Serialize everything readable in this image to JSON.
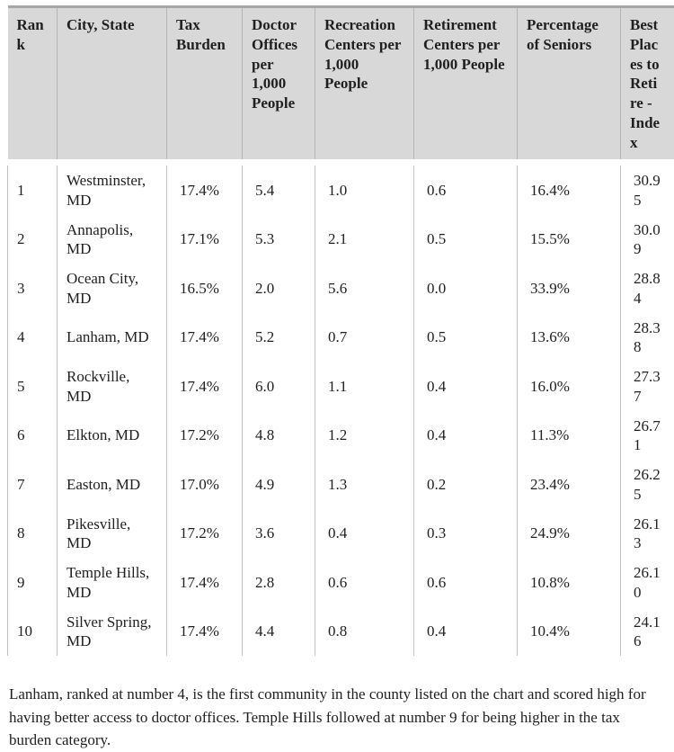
{
  "chart_data": {
    "type": "table",
    "columns": [
      "Rank",
      "City, State",
      "Tax Burden",
      "Doctor Offices per 1,000 People",
      "Recreation Centers per 1,000 People",
      "Retirement Centers per 1,000 People",
      "Percentage of Seniors",
      "Best Places to Retire - Index"
    ],
    "rows": [
      [
        "1",
        "Westminster, MD",
        "17.4%",
        "5.4",
        "1.0",
        "0.6",
        "16.4%",
        "30.95"
      ],
      [
        "2",
        "Annapolis, MD",
        "17.1%",
        "5.3",
        "2.1",
        "0.5",
        "15.5%",
        "30.09"
      ],
      [
        "3",
        "Ocean City, MD",
        "16.5%",
        "2.0",
        "5.6",
        "0.0",
        "33.9%",
        "28.84"
      ],
      [
        "4",
        "Lanham, MD",
        "17.4%",
        "5.2",
        "0.7",
        "0.5",
        "13.6%",
        "28.38"
      ],
      [
        "5",
        "Rockville, MD",
        "17.4%",
        "6.0",
        "1.1",
        "0.4",
        "16.0%",
        "27.37"
      ],
      [
        "6",
        "Elkton, MD",
        "17.2%",
        "4.8",
        "1.2",
        "0.4",
        "11.3%",
        "26.71"
      ],
      [
        "7",
        "Easton, MD",
        "17.0%",
        "4.9",
        "1.3",
        "0.2",
        "23.4%",
        "26.25"
      ],
      [
        "8",
        "Pikesville, MD",
        "17.2%",
        "3.6",
        "0.4",
        "0.3",
        "24.9%",
        "26.13"
      ],
      [
        "9",
        "Temple Hills, MD",
        "17.4%",
        "2.8",
        "0.6",
        "0.6",
        "10.8%",
        "26.10"
      ],
      [
        "10",
        "Silver Spring, MD",
        "17.4%",
        "4.4",
        "0.8",
        "0.4",
        "10.4%",
        "24.16"
      ]
    ]
  },
  "caption": {
    "text": "Lanham, ranked at number 4, is the first community in the county listed on the chart and scored high for having better access to doctor offices. Temple Hills followed at number 9 for being higher in the tax burden category."
  },
  "colors": {
    "header_bg": "#d8d8d8",
    "body_border": "#c3c3c3",
    "header_top_border": "#a6a6a6",
    "text": "#1f1f1f"
  }
}
